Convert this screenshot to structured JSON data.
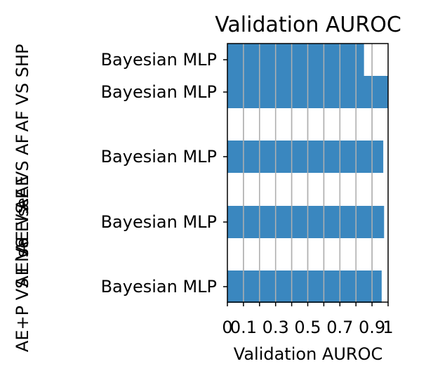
{
  "chart_data": {
    "type": "bar",
    "orientation": "horizontal",
    "title": "Validation AUROC",
    "xlabel": "Validation AUROC",
    "xlim": [
      0,
      1
    ],
    "xticks": [
      "0",
      "0.1",
      "0.3",
      "0.5",
      "0.7",
      "0.9",
      "1"
    ],
    "xtick_values": [
      0,
      0.1,
      0.3,
      0.5,
      0.7,
      0.9,
      1
    ],
    "grid": "vertical",
    "bar_color": "#3a87bf",
    "bars": [
      {
        "label": "Bayesian MLP",
        "value": 0.85
      },
      {
        "label": "Bayesian MLP",
        "value": 1.0
      },
      {
        "label": "Bayesian MLP",
        "value": 0.97
      },
      {
        "label": "Bayesian MLP",
        "value": 0.975
      },
      {
        "label": "Bayesian MLP",
        "value": 0.96
      }
    ],
    "group_labels": [
      "AF VS SHP",
      "AE VS AF",
      "AE VS AE",
      "AE VS Else",
      "AE+P VS Else"
    ]
  }
}
